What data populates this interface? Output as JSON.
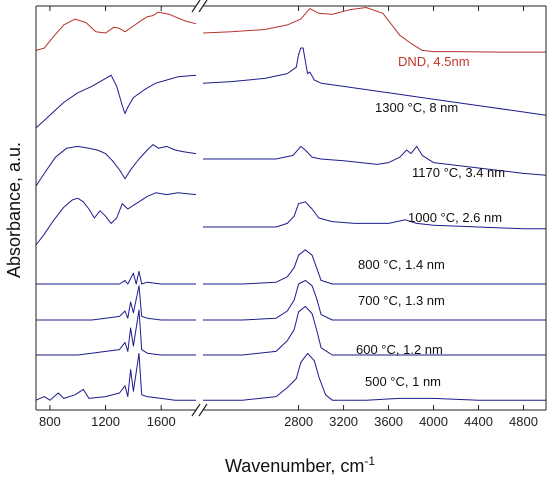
{
  "chart_data": {
    "type": "line",
    "xlabel": "Wavenumber, cm",
    "xlabel_superscript": "-1",
    "ylabel": "Absorbance, a.u.",
    "x_axis_broken": true,
    "x_ranges": [
      [
        700,
        1850
      ],
      [
        1950,
        5000
      ]
    ],
    "x_ticks_left": [
      800,
      1200,
      1600
    ],
    "x_ticks_right": [
      2800,
      3200,
      3600,
      4000,
      4400,
      4800
    ],
    "y_ticks_shown": false,
    "series": [
      {
        "name": "DND, 4.5nm",
        "color": "#b5332b",
        "left": [
          [
            700,
            20
          ],
          [
            760,
            24
          ],
          [
            820,
            42
          ],
          [
            900,
            64
          ],
          [
            980,
            74
          ],
          [
            1060,
            68
          ],
          [
            1130,
            52
          ],
          [
            1200,
            50
          ],
          [
            1260,
            60
          ],
          [
            1300,
            58
          ],
          [
            1340,
            52
          ],
          [
            1400,
            62
          ],
          [
            1460,
            72
          ],
          [
            1500,
            78
          ],
          [
            1540,
            80
          ],
          [
            1580,
            86
          ],
          [
            1620,
            84
          ],
          [
            1660,
            82
          ],
          [
            1700,
            78
          ],
          [
            1780,
            70
          ],
          [
            1850,
            66
          ]
        ],
        "right": [
          [
            1950,
            50
          ],
          [
            2200,
            52
          ],
          [
            2500,
            56
          ],
          [
            2700,
            64
          ],
          [
            2820,
            74
          ],
          [
            2900,
            92
          ],
          [
            2980,
            84
          ],
          [
            3100,
            82
          ],
          [
            3250,
            90
          ],
          [
            3400,
            94
          ],
          [
            3550,
            84
          ],
          [
            3700,
            46
          ],
          [
            3800,
            32
          ],
          [
            3900,
            20
          ],
          [
            4000,
            18
          ],
          [
            4200,
            18
          ],
          [
            4600,
            17
          ],
          [
            5000,
            17
          ]
        ]
      },
      {
        "name": "1300 °C, 8 nm",
        "color": "#1c1c8c",
        "left": [
          [
            700,
            0
          ],
          [
            800,
            16
          ],
          [
            900,
            32
          ],
          [
            1000,
            44
          ],
          [
            1100,
            52
          ],
          [
            1200,
            62
          ],
          [
            1240,
            66
          ],
          [
            1280,
            52
          ],
          [
            1320,
            28
          ],
          [
            1340,
            18
          ],
          [
            1360,
            26
          ],
          [
            1400,
            38
          ],
          [
            1480,
            48
          ],
          [
            1560,
            56
          ],
          [
            1640,
            60
          ],
          [
            1720,
            64
          ],
          [
            1850,
            66
          ]
        ],
        "right": [
          [
            1950,
            56
          ],
          [
            2200,
            58
          ],
          [
            2500,
            62
          ],
          [
            2700,
            68
          ],
          [
            2780,
            76
          ],
          [
            2800,
            92
          ],
          [
            2820,
            100
          ],
          [
            2840,
            100
          ],
          [
            2860,
            84
          ],
          [
            2880,
            68
          ],
          [
            2900,
            70
          ],
          [
            2940,
            60
          ],
          [
            3000,
            56
          ],
          [
            3200,
            52
          ],
          [
            3600,
            44
          ],
          [
            4000,
            36
          ],
          [
            4400,
            28
          ],
          [
            4800,
            20
          ],
          [
            5000,
            16
          ]
        ]
      },
      {
        "name": "1170 °C, 3.4 nm",
        "color": "#1c1c8c",
        "left": [
          [
            700,
            0
          ],
          [
            760,
            14
          ],
          [
            840,
            32
          ],
          [
            920,
            42
          ],
          [
            1000,
            44
          ],
          [
            1080,
            42
          ],
          [
            1140,
            40
          ],
          [
            1200,
            36
          ],
          [
            1250,
            28
          ],
          [
            1300,
            18
          ],
          [
            1340,
            8
          ],
          [
            1380,
            18
          ],
          [
            1440,
            30
          ],
          [
            1500,
            40
          ],
          [
            1540,
            46
          ],
          [
            1580,
            42
          ],
          [
            1640,
            44
          ],
          [
            1700,
            40
          ],
          [
            1760,
            38
          ],
          [
            1850,
            36
          ]
        ],
        "right": [
          [
            1950,
            30
          ],
          [
            2300,
            30
          ],
          [
            2600,
            30
          ],
          [
            2750,
            34
          ],
          [
            2820,
            44
          ],
          [
            2860,
            40
          ],
          [
            2920,
            32
          ],
          [
            3000,
            30
          ],
          [
            3200,
            28
          ],
          [
            3500,
            24
          ],
          [
            3600,
            26
          ],
          [
            3700,
            32
          ],
          [
            3760,
            40
          ],
          [
            3800,
            36
          ],
          [
            3850,
            44
          ],
          [
            3900,
            34
          ],
          [
            4000,
            26
          ],
          [
            4400,
            20
          ],
          [
            4800,
            14
          ],
          [
            5000,
            12
          ]
        ]
      },
      {
        "name": "1000 °C, 2.6 nm",
        "color": "#1c1c8c",
        "left": [
          [
            700,
            0
          ],
          [
            760,
            12
          ],
          [
            820,
            26
          ],
          [
            900,
            42
          ],
          [
            960,
            50
          ],
          [
            1000,
            52
          ],
          [
            1040,
            48
          ],
          [
            1080,
            40
          ],
          [
            1120,
            30
          ],
          [
            1160,
            38
          ],
          [
            1200,
            32
          ],
          [
            1240,
            24
          ],
          [
            1280,
            30
          ],
          [
            1320,
            46
          ],
          [
            1360,
            40
          ],
          [
            1420,
            46
          ],
          [
            1500,
            54
          ],
          [
            1560,
            58
          ],
          [
            1640,
            56
          ],
          [
            1720,
            58
          ],
          [
            1850,
            56
          ]
        ],
        "right": [
          [
            1950,
            20
          ],
          [
            2300,
            20
          ],
          [
            2600,
            20
          ],
          [
            2700,
            24
          ],
          [
            2760,
            32
          ],
          [
            2800,
            46
          ],
          [
            2860,
            48
          ],
          [
            2920,
            40
          ],
          [
            2980,
            30
          ],
          [
            3100,
            26
          ],
          [
            3300,
            24
          ],
          [
            3600,
            24
          ],
          [
            3750,
            28
          ],
          [
            3850,
            24
          ],
          [
            4000,
            22
          ],
          [
            4400,
            20
          ],
          [
            4800,
            18
          ],
          [
            5000,
            18
          ]
        ]
      },
      {
        "name": "800 °C, 1.4 nm",
        "color": "#1c1c8c",
        "left": [
          [
            700,
            0
          ],
          [
            800,
            0
          ],
          [
            900,
            0
          ],
          [
            1000,
            0
          ],
          [
            1100,
            0
          ],
          [
            1200,
            0
          ],
          [
            1300,
            0
          ],
          [
            1340,
            4
          ],
          [
            1360,
            0
          ],
          [
            1400,
            12
          ],
          [
            1420,
            0
          ],
          [
            1440,
            14
          ],
          [
            1460,
            0
          ],
          [
            1500,
            2
          ],
          [
            1600,
            0
          ],
          [
            1700,
            0
          ],
          [
            1850,
            0
          ]
        ],
        "right": [
          [
            1950,
            0
          ],
          [
            2300,
            0
          ],
          [
            2600,
            2
          ],
          [
            2700,
            8
          ],
          [
            2760,
            18
          ],
          [
            2800,
            32
          ],
          [
            2860,
            38
          ],
          [
            2920,
            32
          ],
          [
            2960,
            18
          ],
          [
            3000,
            4
          ],
          [
            3100,
            0
          ],
          [
            3400,
            0
          ],
          [
            3700,
            0
          ],
          [
            4000,
            0
          ],
          [
            4400,
            0
          ],
          [
            4800,
            0
          ],
          [
            5000,
            0
          ]
        ]
      },
      {
        "name": "700 °C, 1.3 nm",
        "color": "#1c1c8c",
        "left": [
          [
            700,
            0
          ],
          [
            800,
            0
          ],
          [
            900,
            0
          ],
          [
            1000,
            0
          ],
          [
            1100,
            0
          ],
          [
            1200,
            2
          ],
          [
            1300,
            4
          ],
          [
            1340,
            10
          ],
          [
            1360,
            2
          ],
          [
            1380,
            20
          ],
          [
            1400,
            8
          ],
          [
            1440,
            38
          ],
          [
            1460,
            4
          ],
          [
            1500,
            2
          ],
          [
            1600,
            0
          ],
          [
            1700,
            0
          ],
          [
            1850,
            0
          ]
        ],
        "right": [
          [
            1950,
            0
          ],
          [
            2300,
            0
          ],
          [
            2600,
            2
          ],
          [
            2700,
            10
          ],
          [
            2760,
            22
          ],
          [
            2800,
            40
          ],
          [
            2860,
            44
          ],
          [
            2920,
            38
          ],
          [
            2960,
            24
          ],
          [
            3000,
            6
          ],
          [
            3100,
            0
          ],
          [
            3400,
            0
          ],
          [
            3700,
            0
          ],
          [
            4000,
            0
          ],
          [
            4400,
            0
          ],
          [
            4800,
            0
          ],
          [
            5000,
            0
          ]
        ]
      },
      {
        "name": "600 °C, 1.2 nm",
        "color": "#1c1c8c",
        "left": [
          [
            700,
            0
          ],
          [
            800,
            0
          ],
          [
            900,
            0
          ],
          [
            1000,
            0
          ],
          [
            1100,
            2
          ],
          [
            1200,
            4
          ],
          [
            1300,
            6
          ],
          [
            1340,
            14
          ],
          [
            1360,
            4
          ],
          [
            1380,
            30
          ],
          [
            1400,
            10
          ],
          [
            1440,
            50
          ],
          [
            1460,
            6
          ],
          [
            1500,
            2
          ],
          [
            1600,
            0
          ],
          [
            1700,
            0
          ],
          [
            1850,
            0
          ]
        ],
        "right": [
          [
            1950,
            0
          ],
          [
            2300,
            0
          ],
          [
            2600,
            4
          ],
          [
            2700,
            16
          ],
          [
            2760,
            28
          ],
          [
            2800,
            48
          ],
          [
            2860,
            54
          ],
          [
            2920,
            46
          ],
          [
            2960,
            28
          ],
          [
            3000,
            8
          ],
          [
            3100,
            0
          ],
          [
            3400,
            0
          ],
          [
            3700,
            0
          ],
          [
            4000,
            0
          ],
          [
            4400,
            0
          ],
          [
            4800,
            0
          ],
          [
            5000,
            0
          ]
        ]
      },
      {
        "name": "500 °C, 1 nm",
        "color": "#1c1c8c",
        "left": [
          [
            700,
            2
          ],
          [
            760,
            6
          ],
          [
            800,
            2
          ],
          [
            860,
            10
          ],
          [
            900,
            4
          ],
          [
            980,
            8
          ],
          [
            1040,
            14
          ],
          [
            1080,
            4
          ],
          [
            1200,
            6
          ],
          [
            1300,
            10
          ],
          [
            1340,
            18
          ],
          [
            1360,
            6
          ],
          [
            1380,
            36
          ],
          [
            1400,
            12
          ],
          [
            1440,
            54
          ],
          [
            1460,
            8
          ],
          [
            1500,
            6
          ],
          [
            1600,
            4
          ],
          [
            1700,
            2
          ],
          [
            1850,
            2
          ]
        ],
        "right": [
          [
            1950,
            2
          ],
          [
            2300,
            2
          ],
          [
            2600,
            6
          ],
          [
            2700,
            16
          ],
          [
            2780,
            26
          ],
          [
            2820,
            44
          ],
          [
            2880,
            54
          ],
          [
            2940,
            46
          ],
          [
            2980,
            28
          ],
          [
            3040,
            8
          ],
          [
            3100,
            2
          ],
          [
            3400,
            2
          ],
          [
            3700,
            4
          ],
          [
            4000,
            4
          ],
          [
            4400,
            2
          ],
          [
            4800,
            2
          ],
          [
            5000,
            2
          ]
        ]
      }
    ]
  }
}
